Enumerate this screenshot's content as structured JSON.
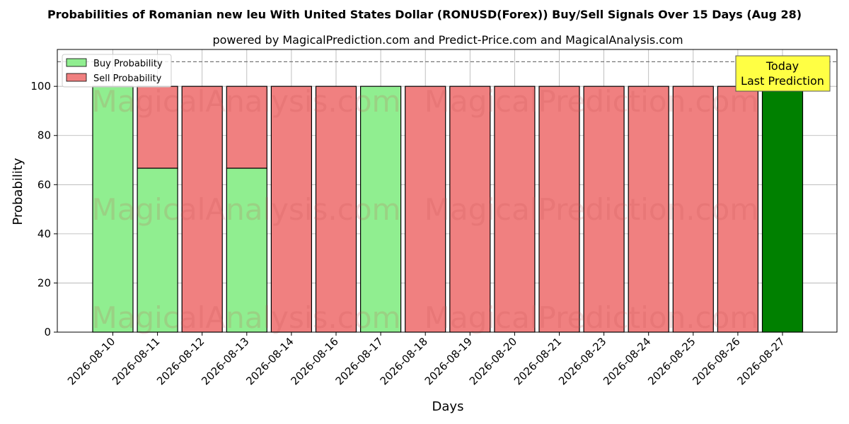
{
  "chart_data": {
    "type": "bar",
    "title": "Probabilities of Romanian new leu With United States Dollar (RONUSD(Forex)) Buy/Sell Signals Over 15 Days (Aug 28)",
    "subtitle": "powered by MagicalPrediction.com and Predict-Price.com and MagicalAnalysis.com",
    "xlabel": "Days",
    "ylabel": "Probability",
    "ylim": [
      0,
      115
    ],
    "yticks": [
      0,
      20,
      40,
      60,
      80,
      100
    ],
    "grid": true,
    "legend_position": "top-left",
    "reference_line": 110,
    "categories": [
      "2026-08-10",
      "2026-08-11",
      "2026-08-12",
      "2026-08-13",
      "2026-08-14",
      "2026-08-16",
      "2026-08-17",
      "2026-08-18",
      "2026-08-19",
      "2026-08-20",
      "2026-08-21",
      "2026-08-23",
      "2026-08-24",
      "2026-08-25",
      "2026-08-26",
      "2026-08-27"
    ],
    "series": [
      {
        "name": "Buy Probability",
        "color": "#90ee90",
        "values": [
          100,
          66.7,
          0,
          66.7,
          0,
          0,
          100,
          0,
          0,
          0,
          0,
          0,
          0,
          0,
          0,
          100
        ]
      },
      {
        "name": "Sell Probability",
        "color": "#f08080",
        "values": [
          0,
          33.3,
          100,
          33.3,
          100,
          100,
          0,
          100,
          100,
          100,
          100,
          100,
          100,
          100,
          100,
          0
        ]
      }
    ],
    "highlight": {
      "index": 15,
      "color": "#008000"
    },
    "annotation": {
      "line1": "Today",
      "line2": "Last Prediction",
      "background": "#ffff44"
    },
    "watermarks": [
      "MagicalAnalysis.com",
      "MagicalPrediction.com"
    ]
  }
}
